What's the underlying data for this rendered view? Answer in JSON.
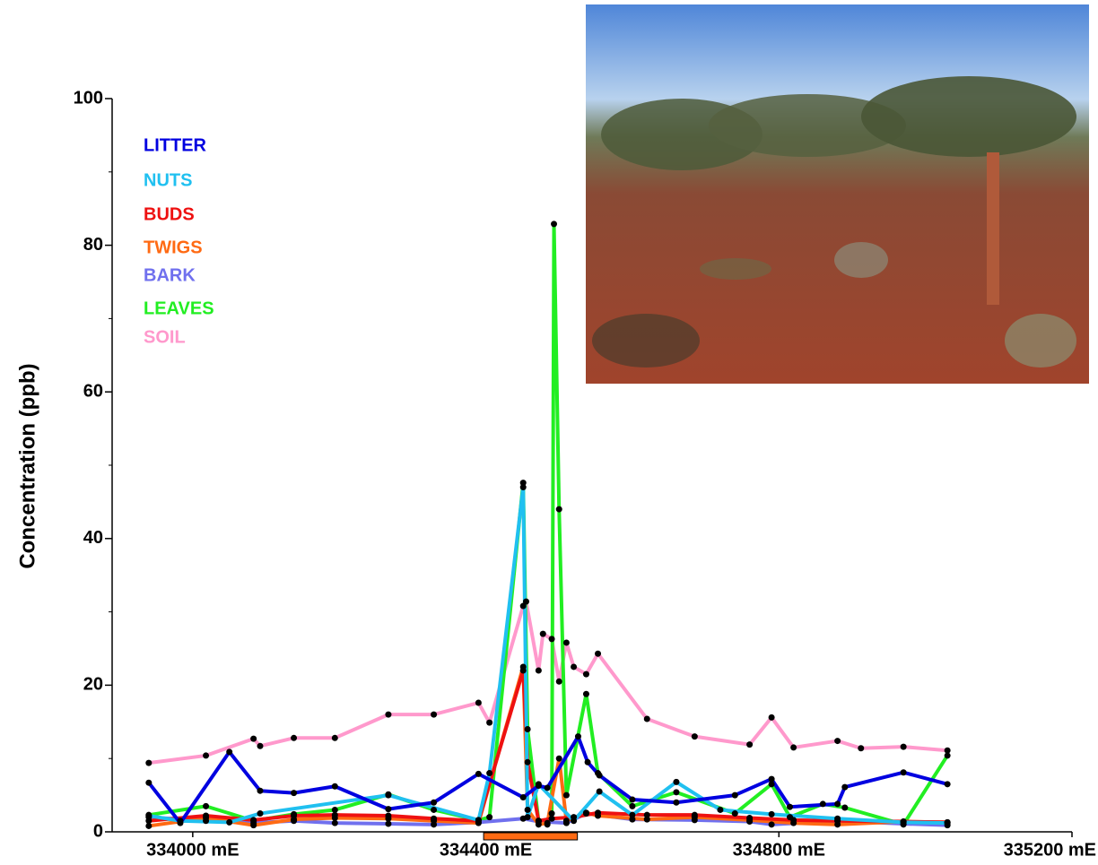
{
  "chart_data": {
    "type": "line",
    "y_label": "Concentration (ppb)",
    "xlim": [
      333890,
      335200
    ],
    "xticks": [
      {
        "value": 334000,
        "label": "334000 mE"
      },
      {
        "value": 334400,
        "label": "334400 mE"
      },
      {
        "value": 334800,
        "label": "334800 mE"
      },
      {
        "value": 335200,
        "label": "335200 mE"
      }
    ],
    "ylim": [
      0,
      100
    ],
    "yticks": [
      0,
      20,
      40,
      60,
      80,
      100
    ],
    "yminorticks": [
      10,
      30,
      50,
      70,
      90
    ],
    "legend": "upper left",
    "marker_color": "#000000",
    "highlight_range": {
      "x": [
        334397,
        334525
      ],
      "color": "#ff6a13"
    },
    "series": [
      {
        "name": "LITTER",
        "color": "#0000e0",
        "x": [
          333940,
          333983,
          334050,
          334092,
          334138,
          334194,
          334267,
          334329,
          334390,
          334451,
          334472,
          334484,
          334526,
          334539,
          334555,
          334600,
          334660,
          334740,
          334790,
          334815,
          334880,
          334890,
          334970,
          335030
        ],
        "values": [
          6.7,
          1.2,
          10.9,
          5.6,
          5.3,
          6.2,
          3.1,
          4.0,
          7.9,
          4.7,
          6.3,
          6.0,
          13.0,
          9.5,
          7.7,
          4.4,
          4.0,
          5.0,
          7.2,
          3.4,
          3.8,
          6.1,
          8.1,
          6.5
        ]
      },
      {
        "name": "NUTS",
        "color": "#20c0f0",
        "x": [
          333940,
          333983,
          334050,
          334092,
          334267,
          334390,
          334405,
          334451,
          334457,
          334472,
          334520,
          334555,
          334600,
          334660,
          334720,
          334790,
          334880,
          334970,
          335030
        ],
        "values": [
          2.2,
          1.5,
          1.3,
          2.5,
          5.0,
          1.6,
          8.0,
          47.0,
          2.0,
          6.5,
          1.5,
          5.5,
          2.3,
          6.8,
          3.0,
          2.4,
          1.8,
          1.3,
          1.2
        ]
      },
      {
        "name": "BUDS",
        "color": "#ee1111",
        "x": [
          333940,
          334018,
          334083,
          334138,
          334194,
          334267,
          334329,
          334390,
          334451,
          334457,
          334472,
          334490,
          334520,
          334553,
          334620,
          334685,
          334760,
          334820,
          334880,
          334970,
          335030
        ],
        "values": [
          1.5,
          2.2,
          1.6,
          2.2,
          2.3,
          2.2,
          1.8,
          1.5,
          22.0,
          9.5,
          1.5,
          1.8,
          2.0,
          2.6,
          2.3,
          2.3,
          1.9,
          1.6,
          1.5,
          1.4,
          1.3
        ]
      },
      {
        "name": "TWIGS",
        "color": "#ff6a13",
        "x": [
          333940,
          334018,
          334083,
          334138,
          334194,
          334267,
          334329,
          334390,
          334451,
          334457,
          334472,
          334484,
          334500,
          334510,
          334537,
          334553,
          334620,
          334685,
          334760,
          334820,
          334880,
          334970,
          335030
        ],
        "values": [
          0.8,
          1.9,
          0.9,
          1.7,
          1.9,
          1.8,
          1.5,
          1.2,
          22.5,
          3.0,
          1.0,
          1.2,
          10.0,
          1.5,
          2.6,
          2.2,
          1.7,
          2.0,
          1.6,
          1.2,
          1.0,
          1.4,
          1.3
        ]
      },
      {
        "name": "BARK",
        "color": "#7070ee",
        "x": [
          333940,
          334018,
          334083,
          334138,
          334194,
          334267,
          334329,
          334390,
          334451,
          334472,
          334510,
          334537,
          334600,
          334685,
          334760,
          334790,
          334880,
          334970,
          335030
        ],
        "values": [
          2.0,
          1.5,
          1.2,
          1.5,
          1.2,
          1.1,
          1.0,
          1.3,
          1.8,
          1.4,
          1.2,
          2.5,
          1.7,
          1.6,
          1.4,
          1.0,
          1.5,
          1.1,
          0.9
        ]
      },
      {
        "name": "LEAVES",
        "color": "#22ee22",
        "x": [
          333940,
          334018,
          334083,
          334138,
          334194,
          334267,
          334329,
          334390,
          334405,
          334451,
          334457,
          334472,
          334484,
          334490,
          334493,
          334500,
          334510,
          334537,
          334553,
          334600,
          334660,
          334740,
          334790,
          334815,
          334860,
          334890,
          334970,
          335030
        ],
        "values": [
          2.3,
          3.5,
          1.5,
          2.4,
          3.0,
          5.1,
          3.0,
          1.6,
          2.0,
          47.6,
          14.0,
          1.5,
          1.0,
          2.5,
          82.9,
          44.0,
          5.0,
          18.8,
          8.0,
          3.5,
          5.4,
          2.5,
          6.5,
          2.0,
          3.8,
          3.3,
          1.0,
          10.4
        ]
      },
      {
        "name": "SOIL",
        "color": "#ff99cc",
        "x": [
          333940,
          334018,
          334083,
          334092,
          334138,
          334194,
          334267,
          334329,
          334390,
          334405,
          334451,
          334455,
          334472,
          334478,
          334490,
          334500,
          334510,
          334520,
          334537,
          334553,
          334620,
          334685,
          334760,
          334790,
          334820,
          334880,
          334912,
          334970,
          335030
        ],
        "values": [
          9.4,
          10.4,
          12.7,
          11.7,
          12.8,
          12.8,
          16.0,
          16.0,
          17.6,
          14.9,
          30.8,
          31.4,
          22.0,
          27.0,
          26.3,
          20.5,
          25.8,
          22.5,
          21.5,
          24.3,
          15.4,
          13.0,
          11.9,
          15.6,
          11.5,
          12.4,
          11.4,
          11.6,
          11.1
        ]
      }
    ]
  }
}
